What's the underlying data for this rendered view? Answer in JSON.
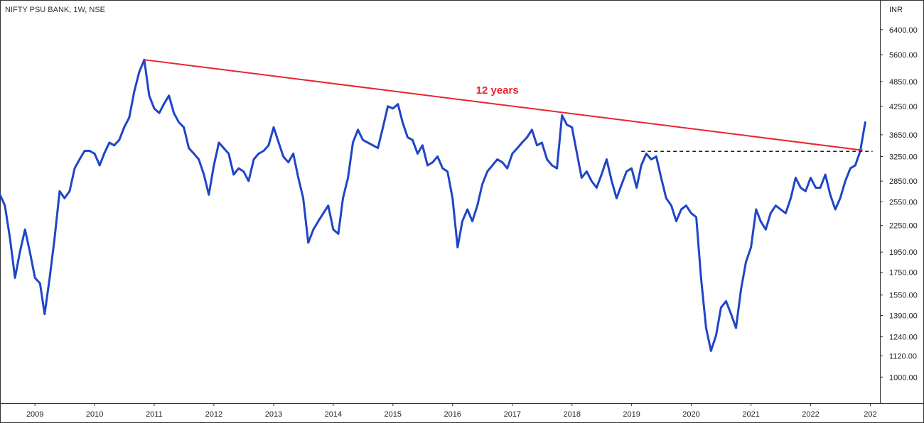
{
  "symbol_label": "NIFTY PSU BANK, 1W, NSE",
  "currency": "INR",
  "colors": {
    "price": "#1f45c8",
    "trendline": "#e8262d",
    "annotation": "#e8262d",
    "support": "#222222",
    "frame": "#333333"
  },
  "chart_data": {
    "type": "line",
    "title": "",
    "scale": "log",
    "xlabel": "",
    "ylabel": "",
    "x_ticks": [
      "2009",
      "2010",
      "2011",
      "2012",
      "2013",
      "2014",
      "2015",
      "2016",
      "2017",
      "2018",
      "2019",
      "2020",
      "2021",
      "2022",
      "202"
    ],
    "y_ticks": [
      "6400.00",
      "5600.00",
      "4850.00",
      "4250.00",
      "3650.00",
      "3250.00",
      "2850.00",
      "2550.00",
      "2250.00",
      "1950.00",
      "1750.00",
      "1550.00",
      "1390.00",
      "1240.00",
      "1120.00",
      "1000.00"
    ],
    "xlim": [
      "2008-06-01",
      "2023-03-01"
    ],
    "ylim": [
      870,
      7500
    ],
    "grid": false,
    "legend": "none",
    "series": [
      {
        "points": [
          [
            "2008-06-01",
            2650
          ],
          [
            "2008-07-01",
            2500
          ],
          [
            "2008-08-01",
            2100
          ],
          [
            "2008-09-01",
            1700
          ],
          [
            "2008-10-01",
            1950
          ],
          [
            "2008-11-01",
            2200
          ],
          [
            "2008-12-01",
            1950
          ],
          [
            "2009-01-01",
            1700
          ],
          [
            "2009-02-01",
            1650
          ],
          [
            "2009-03-01",
            1400
          ],
          [
            "2009-04-01",
            1700
          ],
          [
            "2009-05-01",
            2100
          ],
          [
            "2009-06-01",
            2700
          ],
          [
            "2009-07-01",
            2600
          ],
          [
            "2009-08-01",
            2700
          ],
          [
            "2009-09-01",
            3050
          ],
          [
            "2009-10-01",
            3200
          ],
          [
            "2009-11-01",
            3350
          ],
          [
            "2009-12-01",
            3350
          ],
          [
            "2010-01-01",
            3300
          ],
          [
            "2010-02-01",
            3100
          ],
          [
            "2010-03-01",
            3300
          ],
          [
            "2010-04-01",
            3500
          ],
          [
            "2010-05-01",
            3450
          ],
          [
            "2010-06-01",
            3550
          ],
          [
            "2010-07-01",
            3800
          ],
          [
            "2010-08-01",
            4000
          ],
          [
            "2010-09-01",
            4600
          ],
          [
            "2010-10-01",
            5100
          ],
          [
            "2010-11-01",
            5450
          ],
          [
            "2010-12-01",
            4500
          ],
          [
            "2011-01-01",
            4200
          ],
          [
            "2011-02-01",
            4100
          ],
          [
            "2011-03-01",
            4300
          ],
          [
            "2011-04-01",
            4500
          ],
          [
            "2011-05-01",
            4100
          ],
          [
            "2011-06-01",
            3900
          ],
          [
            "2011-07-01",
            3800
          ],
          [
            "2011-08-01",
            3400
          ],
          [
            "2011-09-01",
            3300
          ],
          [
            "2011-10-01",
            3200
          ],
          [
            "2011-11-01",
            2950
          ],
          [
            "2011-12-01",
            2650
          ],
          [
            "2012-01-01",
            3100
          ],
          [
            "2012-02-01",
            3500
          ],
          [
            "2012-03-01",
            3400
          ],
          [
            "2012-04-01",
            3300
          ],
          [
            "2012-05-01",
            2950
          ],
          [
            "2012-06-01",
            3050
          ],
          [
            "2012-07-01",
            3000
          ],
          [
            "2012-08-01",
            2850
          ],
          [
            "2012-09-01",
            3200
          ],
          [
            "2012-10-01",
            3300
          ],
          [
            "2012-11-01",
            3350
          ],
          [
            "2012-12-01",
            3450
          ],
          [
            "2013-01-01",
            3800
          ],
          [
            "2013-02-01",
            3500
          ],
          [
            "2013-03-01",
            3250
          ],
          [
            "2013-04-01",
            3150
          ],
          [
            "2013-05-01",
            3300
          ],
          [
            "2013-06-01",
            2900
          ],
          [
            "2013-07-01",
            2600
          ],
          [
            "2013-08-01",
            2050
          ],
          [
            "2013-09-01",
            2200
          ],
          [
            "2013-10-01",
            2300
          ],
          [
            "2013-11-01",
            2400
          ],
          [
            "2013-12-01",
            2500
          ],
          [
            "2014-01-01",
            2200
          ],
          [
            "2014-02-01",
            2150
          ],
          [
            "2014-03-01",
            2600
          ],
          [
            "2014-04-01",
            2900
          ],
          [
            "2014-05-01",
            3500
          ],
          [
            "2014-06-01",
            3750
          ],
          [
            "2014-07-01",
            3550
          ],
          [
            "2014-08-01",
            3500
          ],
          [
            "2014-09-01",
            3450
          ],
          [
            "2014-10-01",
            3400
          ],
          [
            "2014-11-01",
            3800
          ],
          [
            "2014-12-01",
            4250
          ],
          [
            "2015-01-01",
            4200
          ],
          [
            "2015-02-01",
            4300
          ],
          [
            "2015-03-01",
            3900
          ],
          [
            "2015-04-01",
            3600
          ],
          [
            "2015-05-01",
            3550
          ],
          [
            "2015-06-01",
            3300
          ],
          [
            "2015-07-01",
            3450
          ],
          [
            "2015-08-01",
            3100
          ],
          [
            "2015-09-01",
            3150
          ],
          [
            "2015-10-01",
            3250
          ],
          [
            "2015-11-01",
            3050
          ],
          [
            "2015-12-01",
            3000
          ],
          [
            "2016-01-01",
            2600
          ],
          [
            "2016-02-01",
            2000
          ],
          [
            "2016-03-01",
            2300
          ],
          [
            "2016-04-01",
            2450
          ],
          [
            "2016-05-01",
            2300
          ],
          [
            "2016-06-01",
            2500
          ],
          [
            "2016-07-01",
            2800
          ],
          [
            "2016-08-01",
            3000
          ],
          [
            "2016-09-01",
            3100
          ],
          [
            "2016-10-01",
            3200
          ],
          [
            "2016-11-01",
            3150
          ],
          [
            "2016-12-01",
            3050
          ],
          [
            "2017-01-01",
            3300
          ],
          [
            "2017-02-01",
            3400
          ],
          [
            "2017-03-01",
            3500
          ],
          [
            "2017-04-01",
            3600
          ],
          [
            "2017-05-01",
            3750
          ],
          [
            "2017-06-01",
            3450
          ],
          [
            "2017-07-01",
            3500
          ],
          [
            "2017-08-01",
            3200
          ],
          [
            "2017-09-01",
            3100
          ],
          [
            "2017-10-01",
            3050
          ],
          [
            "2017-11-01",
            4050
          ],
          [
            "2017-12-01",
            3850
          ],
          [
            "2018-01-01",
            3800
          ],
          [
            "2018-02-01",
            3300
          ],
          [
            "2018-03-01",
            2900
          ],
          [
            "2018-04-01",
            3000
          ],
          [
            "2018-05-01",
            2850
          ],
          [
            "2018-06-01",
            2750
          ],
          [
            "2018-07-01",
            2950
          ],
          [
            "2018-08-01",
            3200
          ],
          [
            "2018-09-01",
            2850
          ],
          [
            "2018-10-01",
            2600
          ],
          [
            "2018-11-01",
            2800
          ],
          [
            "2018-12-01",
            3000
          ],
          [
            "2019-01-01",
            3050
          ],
          [
            "2019-02-01",
            2750
          ],
          [
            "2019-03-01",
            3100
          ],
          [
            "2019-04-01",
            3300
          ],
          [
            "2019-05-01",
            3200
          ],
          [
            "2019-06-01",
            3250
          ],
          [
            "2019-07-01",
            2900
          ],
          [
            "2019-08-01",
            2600
          ],
          [
            "2019-09-01",
            2500
          ],
          [
            "2019-10-01",
            2300
          ],
          [
            "2019-11-01",
            2450
          ],
          [
            "2019-12-01",
            2500
          ],
          [
            "2020-01-01",
            2400
          ],
          [
            "2020-02-01",
            2350
          ],
          [
            "2020-03-01",
            1700
          ],
          [
            "2020-04-01",
            1300
          ],
          [
            "2020-05-01",
            1150
          ],
          [
            "2020-06-01",
            1250
          ],
          [
            "2020-07-01",
            1450
          ],
          [
            "2020-08-01",
            1500
          ],
          [
            "2020-09-01",
            1400
          ],
          [
            "2020-10-01",
            1300
          ],
          [
            "2020-11-01",
            1600
          ],
          [
            "2020-12-01",
            1850
          ],
          [
            "2021-01-01",
            2000
          ],
          [
            "2021-02-01",
            2450
          ],
          [
            "2021-03-01",
            2300
          ],
          [
            "2021-04-01",
            2200
          ],
          [
            "2021-05-01",
            2400
          ],
          [
            "2021-06-01",
            2500
          ],
          [
            "2021-07-01",
            2450
          ],
          [
            "2021-08-01",
            2400
          ],
          [
            "2021-09-01",
            2600
          ],
          [
            "2021-10-01",
            2900
          ],
          [
            "2021-11-01",
            2750
          ],
          [
            "2021-12-01",
            2700
          ],
          [
            "2022-01-01",
            2900
          ],
          [
            "2022-02-01",
            2750
          ],
          [
            "2022-03-01",
            2750
          ],
          [
            "2022-04-01",
            2950
          ],
          [
            "2022-05-01",
            2650
          ],
          [
            "2022-06-01",
            2450
          ],
          [
            "2022-07-01",
            2600
          ],
          [
            "2022-08-01",
            2850
          ],
          [
            "2022-09-01",
            3050
          ],
          [
            "2022-10-01",
            3100
          ],
          [
            "2022-11-01",
            3350
          ],
          [
            "2022-12-01",
            3900
          ]
        ]
      }
    ],
    "annotations": [
      {
        "kind": "trendline",
        "from": [
          "2010-11-01",
          5450
        ],
        "to": [
          "2022-11-15",
          3360
        ]
      },
      {
        "kind": "hline-dashed",
        "from": [
          "2019-03-01",
          3340
        ],
        "to": [
          "2023-01-15",
          3340
        ]
      },
      {
        "kind": "text",
        "text": "12 years",
        "at": [
          "2016-10-01",
          4550
        ]
      }
    ]
  }
}
